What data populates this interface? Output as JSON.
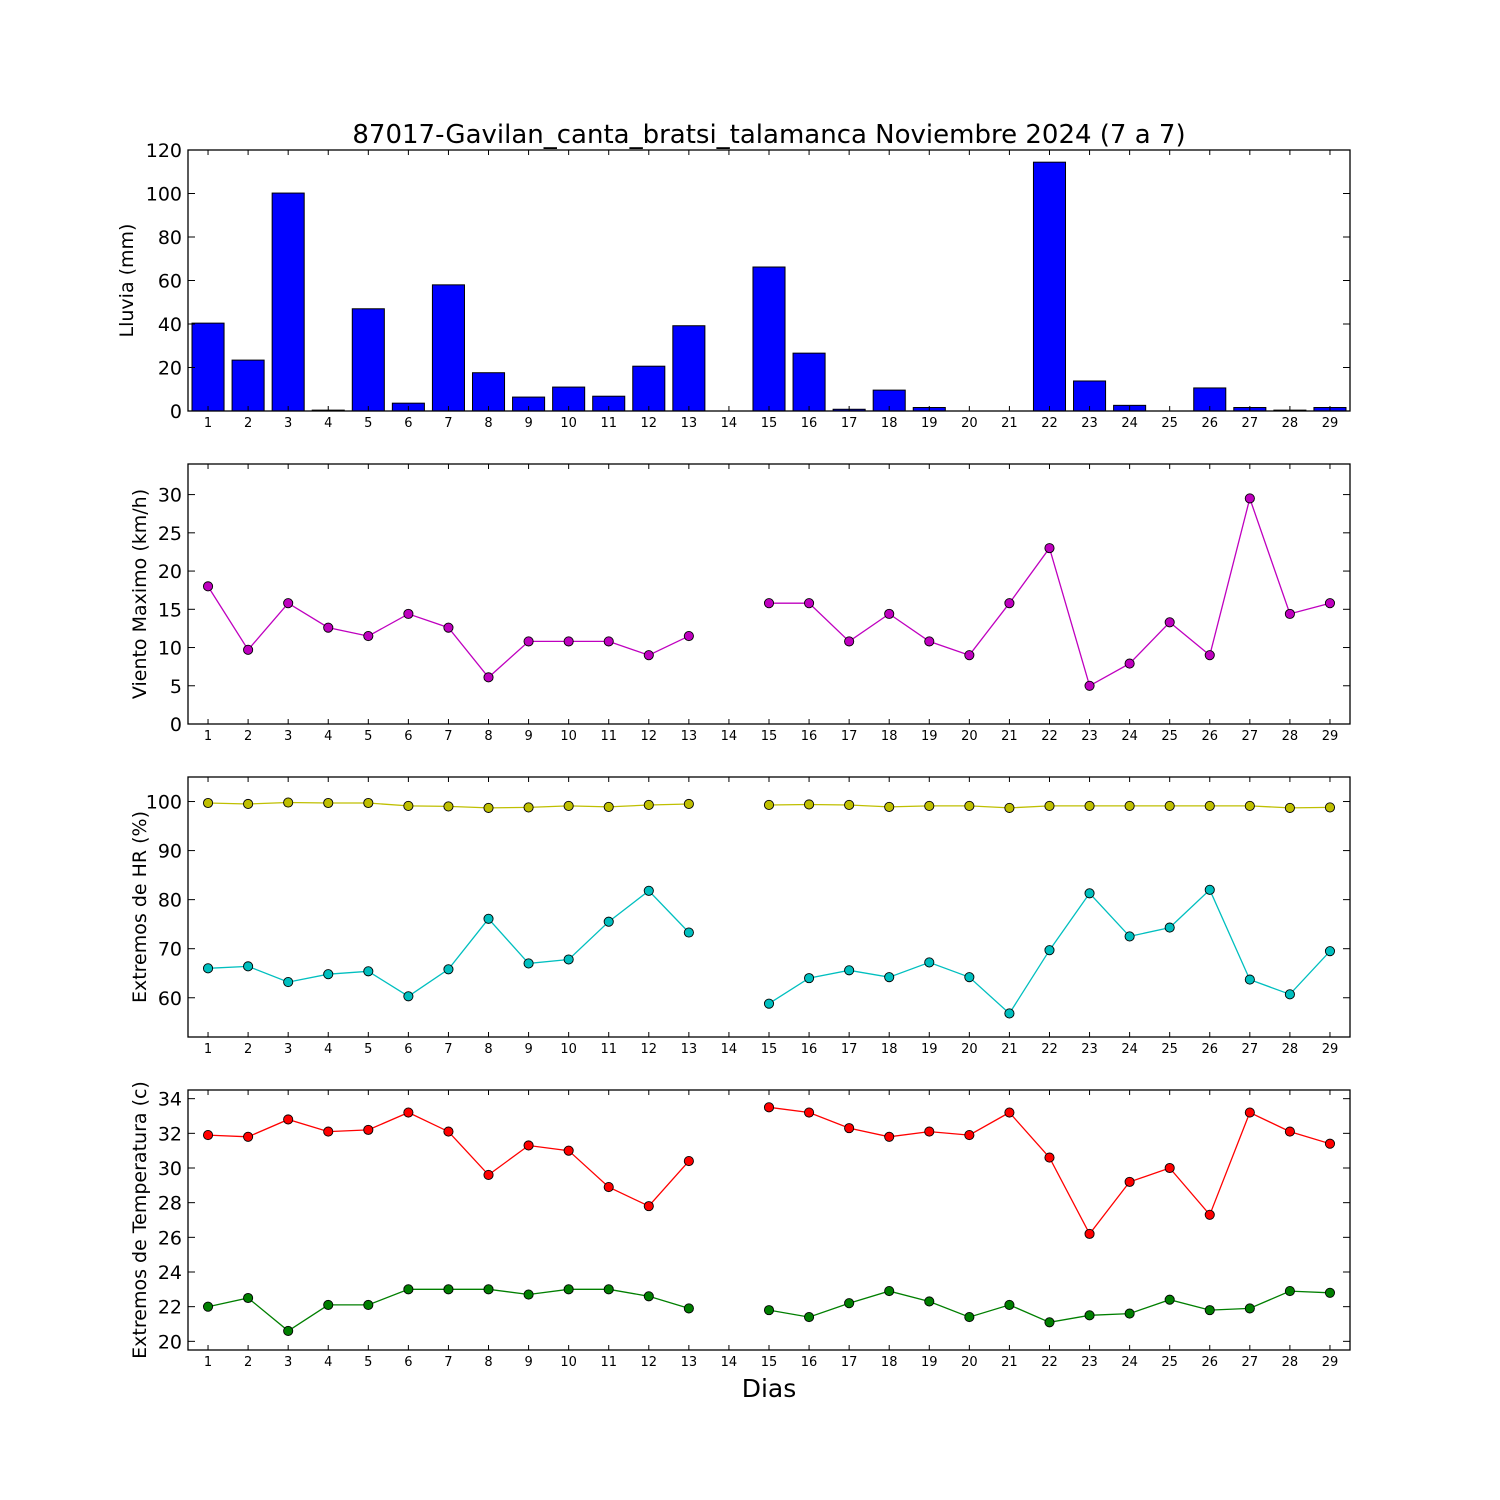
{
  "title": "87017-Gavilan_canta_bratsi_talamanca Noviembre 2024  (7 a 7)",
  "xlabel": "Dias",
  "chart_data": [
    {
      "type": "bar",
      "title": "87017-Gavilan_canta_bratsi_talamanca Noviembre 2024  (7 a 7)",
      "ylabel": "Lluvia (mm)",
      "ylim": [
        0,
        120
      ],
      "yticks": [
        0,
        20,
        40,
        60,
        80,
        100,
        120
      ],
      "categories": [
        1,
        2,
        3,
        4,
        5,
        6,
        7,
        8,
        9,
        10,
        11,
        12,
        13,
        14,
        15,
        16,
        17,
        18,
        19,
        20,
        21,
        22,
        23,
        24,
        25,
        26,
        27,
        28,
        29
      ],
      "series": [
        {
          "color": "#0000ff",
          "values": [
            40.4,
            23.4,
            100.2,
            0.4,
            47,
            3.6,
            58,
            17.6,
            6.4,
            11,
            6.8,
            20.6,
            39.2,
            null,
            66.2,
            26.6,
            0.8,
            9.6,
            1.6,
            0,
            0,
            114.4,
            13.8,
            2.6,
            0,
            10.6,
            1.6,
            0.4,
            1.6
          ]
        }
      ]
    },
    {
      "type": "line",
      "ylabel": "Viento Maximo (km/h)",
      "ylim": [
        0,
        34
      ],
      "yticks": [
        0,
        5,
        10,
        15,
        20,
        25,
        30
      ],
      "x": [
        1,
        2,
        3,
        4,
        5,
        6,
        7,
        8,
        9,
        10,
        11,
        12,
        13,
        14,
        15,
        16,
        17,
        18,
        19,
        20,
        21,
        22,
        23,
        24,
        25,
        26,
        27,
        28,
        29
      ],
      "series": [
        {
          "color": "#bf00bf",
          "values": [
            18,
            9.7,
            15.8,
            12.6,
            11.5,
            14.4,
            12.6,
            6.1,
            10.8,
            10.8,
            10.8,
            9,
            11.5,
            null,
            15.8,
            15.8,
            10.8,
            14.4,
            10.8,
            9,
            15.8,
            23,
            5,
            7.9,
            13.3,
            9,
            29.5,
            14.4,
            15.8
          ]
        }
      ]
    },
    {
      "type": "line",
      "ylabel": "Extremos de HR (%)",
      "ylim": [
        52,
        105
      ],
      "yticks": [
        60,
        70,
        80,
        90,
        100
      ],
      "x": [
        1,
        2,
        3,
        4,
        5,
        6,
        7,
        8,
        9,
        10,
        11,
        12,
        13,
        14,
        15,
        16,
        17,
        18,
        19,
        20,
        21,
        22,
        23,
        24,
        25,
        26,
        27,
        28,
        29
      ],
      "series": [
        {
          "color": "#bfbf00",
          "values": [
            99.7,
            99.5,
            99.8,
            99.7,
            99.7,
            99.1,
            99,
            98.7,
            98.8,
            99.1,
            98.9,
            99.3,
            99.5,
            null,
            99.3,
            99.4,
            99.3,
            98.9,
            99.1,
            99.1,
            98.7,
            99.1,
            99.1,
            99.1,
            99.1,
            99.1,
            99.1,
            98.7,
            98.8
          ]
        },
        {
          "color": "#00bfbf",
          "values": [
            66,
            66.4,
            63.2,
            64.8,
            65.4,
            60.3,
            65.8,
            76.1,
            67,
            67.8,
            75.5,
            81.8,
            73.3,
            null,
            58.8,
            64,
            65.6,
            64.2,
            67.2,
            64.2,
            56.8,
            69.7,
            81.3,
            72.5,
            74.3,
            82,
            63.7,
            60.7,
            69.5
          ]
        }
      ]
    },
    {
      "type": "line",
      "ylabel": "Extremos de Temperatura (c)",
      "ylim": [
        19.5,
        34.5
      ],
      "yticks": [
        20,
        22,
        24,
        26,
        28,
        30,
        32,
        34
      ],
      "x": [
        1,
        2,
        3,
        4,
        5,
        6,
        7,
        8,
        9,
        10,
        11,
        12,
        13,
        14,
        15,
        16,
        17,
        18,
        19,
        20,
        21,
        22,
        23,
        24,
        25,
        26,
        27,
        28,
        29
      ],
      "series": [
        {
          "color": "#ff0000",
          "values": [
            31.9,
            31.8,
            32.8,
            32.1,
            32.2,
            33.2,
            32.1,
            29.6,
            31.3,
            31,
            28.9,
            27.8,
            30.4,
            null,
            33.5,
            33.2,
            32.3,
            31.8,
            32.1,
            31.9,
            33.2,
            30.6,
            26.2,
            29.2,
            30,
            27.3,
            33.2,
            32.1,
            31.4
          ]
        },
        {
          "color": "#007f00",
          "values": [
            22,
            22.5,
            20.6,
            22.1,
            22.1,
            23,
            23,
            23,
            22.7,
            23,
            23,
            22.6,
            21.9,
            null,
            21.8,
            21.4,
            22.2,
            22.9,
            22.3,
            21.4,
            22.1,
            21.1,
            21.5,
            21.6,
            22.4,
            21.8,
            21.9,
            22.9,
            22.8
          ]
        }
      ]
    }
  ]
}
